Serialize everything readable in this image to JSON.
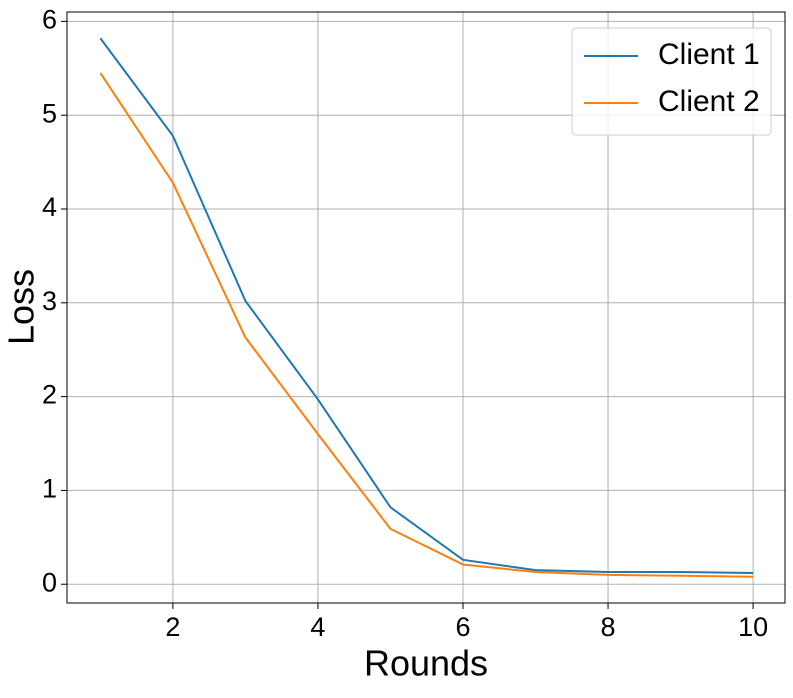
{
  "chart_data": {
    "type": "line",
    "x": [
      1,
      2,
      3,
      4,
      5,
      6,
      7,
      8,
      9,
      10
    ],
    "series": [
      {
        "name": "Client 1",
        "color": "#1f77b4",
        "values": [
          5.82,
          4.78,
          3.02,
          1.97,
          0.82,
          0.26,
          0.15,
          0.13,
          0.13,
          0.12
        ]
      },
      {
        "name": "Client 2",
        "color": "#ff7f0e",
        "values": [
          5.45,
          4.28,
          2.63,
          1.6,
          0.59,
          0.21,
          0.13,
          0.1,
          0.09,
          0.08
        ]
      }
    ],
    "x_label": "Rounds",
    "y_label": "Loss",
    "xlim": [
      0.54,
      10.44
    ],
    "ylim": [
      -0.2,
      6.1
    ],
    "xticks": [
      2,
      4,
      6,
      8,
      10
    ],
    "yticks": [
      0,
      1,
      2,
      3,
      4,
      5,
      6
    ],
    "grid": true,
    "legend": "upper right"
  }
}
